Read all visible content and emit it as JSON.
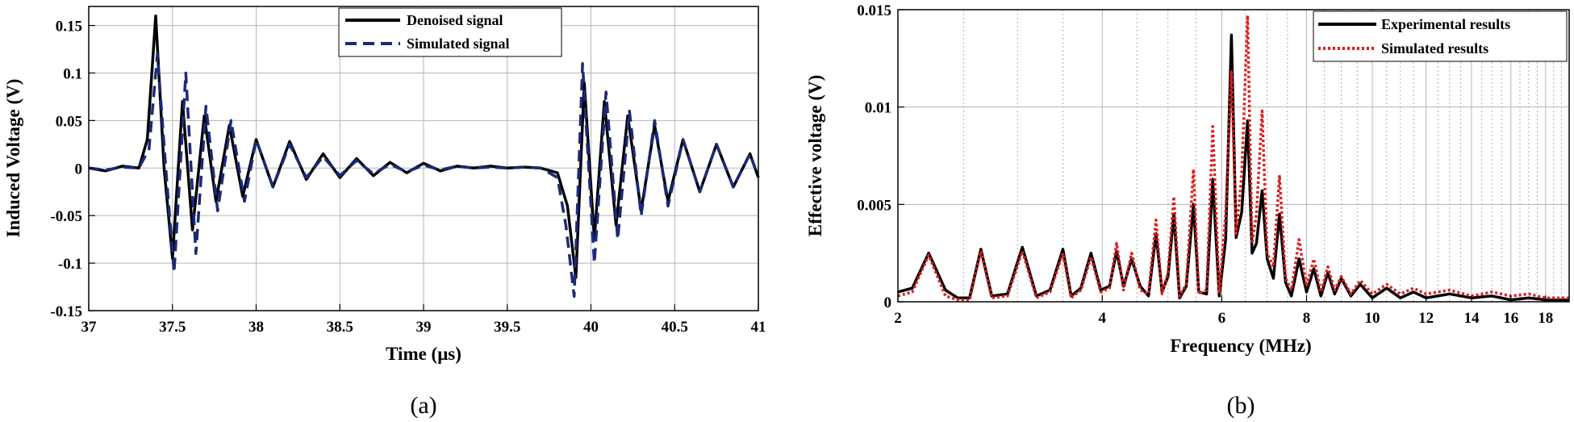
{
  "chart_data": [
    {
      "type": "line",
      "caption": "(a)",
      "xlabel": "Time (μs)",
      "ylabel": "Induced Voltage (V)",
      "xlim": [
        37,
        41
      ],
      "ylim": [
        -0.15,
        0.17
      ],
      "xticks": [
        37,
        37.5,
        38,
        38.5,
        39,
        39.5,
        40,
        40.5,
        41
      ],
      "xtick_labels": [
        "37",
        "37.5",
        "38",
        "38.5",
        "39",
        "39.5",
        "40",
        "40.5",
        "41"
      ],
      "yticks": [
        -0.15,
        -0.1,
        -0.05,
        0,
        0.05,
        0.1,
        0.15
      ],
      "ytick_labels": [
        "-0.15",
        "-0.1",
        "-0.05",
        "0",
        "0.05",
        "0.1",
        "0.15"
      ],
      "grid": true,
      "legend_position": "top-right",
      "series": [
        {
          "name": "Denoised signal",
          "color": "#000000",
          "style": "solid",
          "x": [
            37.0,
            37.1,
            37.2,
            37.3,
            37.35,
            37.4,
            37.45,
            37.5,
            37.56,
            37.62,
            37.69,
            37.76,
            37.84,
            37.92,
            38.0,
            38.1,
            38.2,
            38.3,
            38.4,
            38.5,
            38.6,
            38.7,
            38.8,
            38.9,
            39.0,
            39.1,
            39.2,
            39.3,
            39.4,
            39.5,
            39.6,
            39.7,
            39.8,
            39.86,
            39.91,
            39.96,
            40.02,
            40.08,
            40.15,
            40.22,
            40.3,
            40.38,
            40.46,
            40.55,
            40.65,
            40.75,
            40.85,
            40.95,
            41.0
          ],
          "y": [
            0.0,
            -0.003,
            0.002,
            0.0,
            0.03,
            0.16,
            0.0,
            -0.095,
            0.07,
            -0.065,
            0.055,
            -0.035,
            0.045,
            -0.03,
            0.03,
            -0.02,
            0.028,
            -0.012,
            0.015,
            -0.01,
            0.01,
            -0.008,
            0.006,
            -0.005,
            0.005,
            -0.003,
            0.002,
            0.0,
            0.002,
            0.0,
            0.001,
            0.0,
            -0.005,
            -0.04,
            -0.115,
            0.09,
            -0.075,
            0.07,
            -0.06,
            0.055,
            -0.045,
            0.045,
            -0.035,
            0.03,
            -0.025,
            0.025,
            -0.02,
            0.015,
            -0.01
          ]
        },
        {
          "name": "Simulated signal",
          "color": "#1a2a78",
          "style": "dashed",
          "x": [
            37.0,
            37.1,
            37.2,
            37.3,
            37.36,
            37.41,
            37.46,
            37.51,
            37.58,
            37.64,
            37.7,
            37.77,
            37.85,
            37.93,
            38.0,
            38.1,
            38.2,
            38.3,
            38.4,
            38.5,
            38.6,
            38.7,
            38.8,
            38.9,
            39.0,
            39.1,
            39.2,
            39.3,
            39.4,
            39.5,
            39.6,
            39.7,
            39.8,
            39.85,
            39.9,
            39.95,
            40.02,
            40.09,
            40.16,
            40.23,
            40.3,
            40.38,
            40.46,
            40.55,
            40.65,
            40.75,
            40.85,
            40.95,
            41.0
          ],
          "y": [
            0.0,
            -0.002,
            0.001,
            0.0,
            0.02,
            0.12,
            0.0,
            -0.11,
            0.1,
            -0.09,
            0.065,
            -0.045,
            0.05,
            -0.035,
            0.03,
            -0.02,
            0.025,
            -0.01,
            0.012,
            -0.008,
            0.008,
            -0.006,
            0.004,
            -0.004,
            0.003,
            -0.002,
            0.002,
            0.0,
            0.001,
            0.0,
            0.001,
            0.0,
            -0.01,
            -0.06,
            -0.135,
            0.11,
            -0.1,
            0.08,
            -0.075,
            0.06,
            -0.05,
            0.05,
            -0.04,
            0.03,
            -0.025,
            0.025,
            -0.02,
            0.015,
            -0.01
          ]
        }
      ]
    },
    {
      "type": "line",
      "caption": "(b)",
      "xlabel": "Frequency (MHz)",
      "ylabel": "Effective voltage (V)",
      "xscale": "log",
      "xlim": [
        2,
        19.5
      ],
      "ylim": [
        0,
        0.015
      ],
      "xticks": [
        2,
        4,
        6,
        8,
        10,
        12,
        14,
        16,
        18
      ],
      "xtick_labels": [
        "2",
        "4",
        "6",
        "8",
        "10",
        "12",
        "14",
        "16",
        "18"
      ],
      "yticks": [
        0,
        0.005,
        0.01,
        0.015
      ],
      "ytick_labels": [
        "0",
        "0.005",
        "0.01",
        "0.015"
      ],
      "grid": true,
      "legend_position": "top-right",
      "series": [
        {
          "name": "Experimental results",
          "color": "#000000",
          "style": "solid",
          "x": [
            2.0,
            2.1,
            2.22,
            2.35,
            2.45,
            2.55,
            2.65,
            2.75,
            2.9,
            3.05,
            3.2,
            3.35,
            3.5,
            3.6,
            3.72,
            3.85,
            3.98,
            4.1,
            4.2,
            4.3,
            4.42,
            4.55,
            4.68,
            4.8,
            4.9,
            5.0,
            5.1,
            5.2,
            5.32,
            5.45,
            5.55,
            5.7,
            5.82,
            5.95,
            6.08,
            6.2,
            6.3,
            6.42,
            6.55,
            6.65,
            6.75,
            6.88,
            7.0,
            7.15,
            7.3,
            7.45,
            7.6,
            7.8,
            8.0,
            8.2,
            8.4,
            8.6,
            8.8,
            9.0,
            9.3,
            9.6,
            10.0,
            10.5,
            11.0,
            11.5,
            12.0,
            13.0,
            14.0,
            15.0,
            16.0,
            17.0,
            18.0,
            19.5
          ],
          "y": [
            0.0005,
            0.0007,
            0.0025,
            0.0006,
            0.0002,
            0.0002,
            0.0027,
            0.0003,
            0.0004,
            0.0028,
            0.0003,
            0.0006,
            0.0027,
            0.0003,
            0.0007,
            0.0025,
            0.0006,
            0.0008,
            0.0026,
            0.0008,
            0.0022,
            0.0008,
            0.0003,
            0.0035,
            0.0005,
            0.0013,
            0.0045,
            0.0002,
            0.0008,
            0.005,
            0.0005,
            0.0004,
            0.0063,
            0.0003,
            0.0032,
            0.0137,
            0.0033,
            0.0046,
            0.0093,
            0.0025,
            0.003,
            0.0057,
            0.0022,
            0.0012,
            0.0045,
            0.001,
            0.0003,
            0.0022,
            0.0005,
            0.0017,
            0.0003,
            0.0015,
            0.0004,
            0.0012,
            0.0003,
            0.0009,
            0.0002,
            0.0007,
            0.0002,
            0.0005,
            0.0002,
            0.0004,
            0.0002,
            0.0003,
            0.0001,
            0.0002,
            0.0001,
            0.0001
          ]
        },
        {
          "name": "Simulated results",
          "color": "#e01b1b",
          "style": "dotted",
          "x": [
            2.0,
            2.1,
            2.22,
            2.35,
            2.45,
            2.55,
            2.65,
            2.75,
            2.9,
            3.05,
            3.2,
            3.35,
            3.5,
            3.6,
            3.72,
            3.85,
            3.98,
            4.1,
            4.2,
            4.3,
            4.42,
            4.55,
            4.68,
            4.8,
            4.9,
            5.0,
            5.1,
            5.2,
            5.32,
            5.45,
            5.55,
            5.7,
            5.82,
            5.95,
            6.08,
            6.2,
            6.3,
            6.42,
            6.55,
            6.65,
            6.75,
            6.88,
            7.0,
            7.15,
            7.3,
            7.45,
            7.6,
            7.8,
            8.0,
            8.2,
            8.4,
            8.6,
            8.8,
            9.0,
            9.3,
            9.6,
            10.0,
            10.5,
            11.0,
            11.5,
            12.0,
            13.0,
            14.0,
            15.0,
            16.0,
            17.0,
            18.0,
            19.5
          ],
          "y": [
            0.0003,
            0.0005,
            0.0024,
            0.0003,
            0.0001,
            0.0001,
            0.0026,
            0.0002,
            0.0003,
            0.0026,
            0.0002,
            0.0005,
            0.0025,
            0.0002,
            0.0006,
            0.0023,
            0.0005,
            0.0007,
            0.003,
            0.0006,
            0.0025,
            0.0006,
            0.0004,
            0.0042,
            0.0004,
            0.0015,
            0.0054,
            0.0003,
            0.0009,
            0.0068,
            0.0004,
            0.0006,
            0.009,
            0.0005,
            0.0045,
            0.0118,
            0.0035,
            0.0065,
            0.0147,
            0.003,
            0.0045,
            0.0098,
            0.0025,
            0.0018,
            0.0065,
            0.0012,
            0.0006,
            0.0032,
            0.0008,
            0.0022,
            0.0005,
            0.0018,
            0.0006,
            0.0013,
            0.0004,
            0.0011,
            0.0004,
            0.0009,
            0.0004,
            0.0007,
            0.0004,
            0.0006,
            0.0003,
            0.0005,
            0.0003,
            0.0004,
            0.0002,
            0.0002
          ]
        }
      ]
    }
  ]
}
